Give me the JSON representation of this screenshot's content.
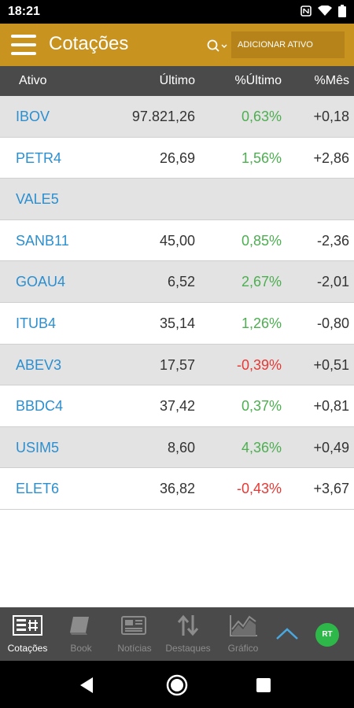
{
  "status_bar": {
    "time": "18:21"
  },
  "app_bar": {
    "title": "Cotações",
    "add_button": "ADICIONAR ATIVO"
  },
  "table": {
    "headers": {
      "ativo": "Ativo",
      "ultimo": "Último",
      "pct_ultimo": "%Último",
      "pct_mes": "%Mês"
    },
    "rows": [
      {
        "ticker": "IBOV",
        "ultimo": "97.821,26",
        "pct_ultimo": "0,63%",
        "pct_mes": "+0,18"
      },
      {
        "ticker": "PETR4",
        "ultimo": "26,69",
        "pct_ultimo": "1,56%",
        "pct_mes": "+2,86"
      },
      {
        "ticker": "VALE5",
        "ultimo": "",
        "pct_ultimo": "",
        "pct_mes": ""
      },
      {
        "ticker": "SANB11",
        "ultimo": "45,00",
        "pct_ultimo": "0,85%",
        "pct_mes": "-2,36"
      },
      {
        "ticker": "GOAU4",
        "ultimo": "6,52",
        "pct_ultimo": "2,67%",
        "pct_mes": "-2,01"
      },
      {
        "ticker": "ITUB4",
        "ultimo": "35,14",
        "pct_ultimo": "1,26%",
        "pct_mes": "-0,80"
      },
      {
        "ticker": "ABEV3",
        "ultimo": "17,57",
        "pct_ultimo": "-0,39%",
        "pct_mes": "+0,51"
      },
      {
        "ticker": "BBDC4",
        "ultimo": "37,42",
        "pct_ultimo": "0,37%",
        "pct_mes": "+0,81"
      },
      {
        "ticker": "USIM5",
        "ultimo": "8,60",
        "pct_ultimo": "4,36%",
        "pct_mes": "+0,49"
      },
      {
        "ticker": "ELET6",
        "ultimo": "36,82",
        "pct_ultimo": "-0,43%",
        "pct_mes": "+3,67"
      }
    ]
  },
  "bottom_nav": {
    "items": [
      {
        "label": "Cotações",
        "icon": "quotes-icon"
      },
      {
        "label": "Book",
        "icon": "book-icon"
      },
      {
        "label": "Notícias",
        "icon": "news-icon"
      },
      {
        "label": "Destaques",
        "icon": "up-down-arrows-icon"
      },
      {
        "label": "Gráfico",
        "icon": "chart-icon"
      }
    ],
    "rt_badge": "RT"
  },
  "colors": {
    "accent": "#c8931f",
    "positive": "#4caf50",
    "negative": "#e53935",
    "ticker": "#2b8fd0"
  }
}
